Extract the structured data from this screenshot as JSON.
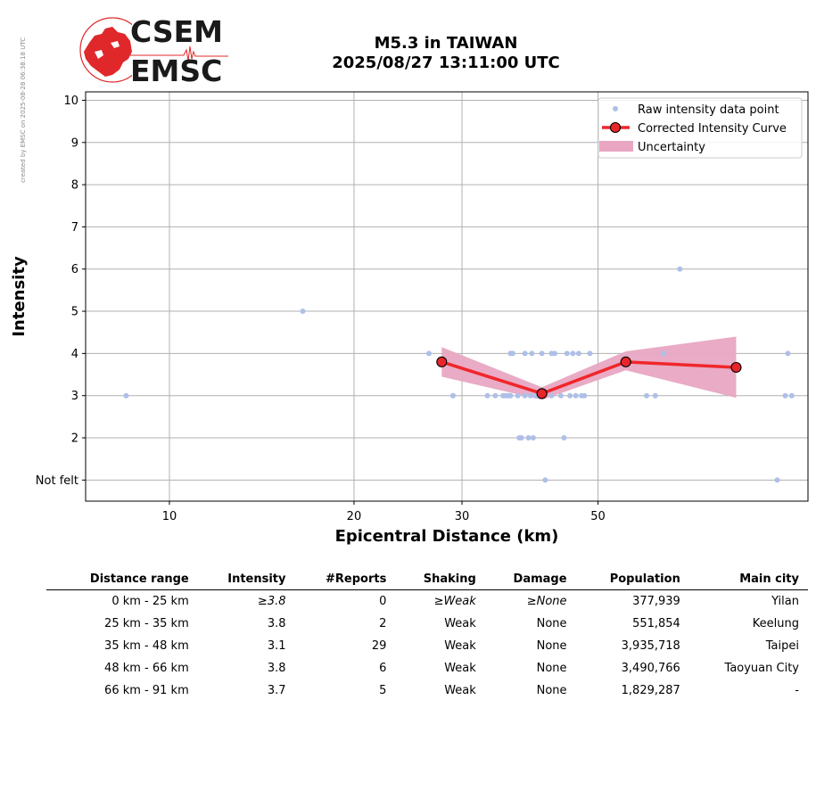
{
  "side_note": "created by EMSC on 2025-08-28 06:38:18 UTC",
  "logo": {
    "line1": "CSEM",
    "line2": "EMSC",
    "color": "#e0282b"
  },
  "title_line1": "M5.3 in TAIWAN",
  "title_line2": "2025/08/27 13:11:00 UTC",
  "chart_data": {
    "type": "scatter",
    "xlabel": "Epicentral Distance (km)",
    "ylabel": "Intensity",
    "x_scale": "log",
    "xlim": [
      7.3,
      110
    ],
    "ylim": [
      0.5,
      10.2
    ],
    "x_ticks": [
      10,
      20,
      30,
      50
    ],
    "y_ticks": [
      1,
      2,
      3,
      4,
      5,
      6,
      7,
      8,
      9,
      10
    ],
    "y_tick_labels": [
      "Not felt",
      "2",
      "3",
      "4",
      "5",
      "6",
      "7",
      "8",
      "9",
      "10"
    ],
    "grid": true,
    "legend_position": "top-right",
    "legend": [
      "Raw intensity data point",
      "Corrected Intensity Curve",
      "Uncertainty"
    ],
    "colors": {
      "raw": "#aebfe8",
      "curve": "#f0262a",
      "marker": "#e8262a",
      "uncertainty": "#e8a6c2"
    },
    "raw_points": {
      "x": [
        8.5,
        16.5,
        26.5,
        29.0,
        34.0,
        35.0,
        35.5,
        36.0,
        36.3,
        37.0,
        37.5,
        38.0,
        38.5,
        39.0,
        39.2,
        40.0,
        40.5,
        41.0,
        42.0,
        42.5,
        43.5,
        44.5,
        45.0,
        45.5,
        46.0,
        46.5,
        47.0,
        48.5,
        60.0,
        62.0,
        64.0,
        68.0,
        98.0,
        101.0,
        102.0,
        103.5,
        36.0,
        37.2,
        38.0,
        39.5,
        42.0,
        35.3,
        44.0,
        47.5,
        40.0,
        38.8,
        33.0,
        29.0,
        35.8
      ],
      "y": [
        3,
        5,
        4,
        3,
        3,
        3,
        3,
        4,
        4,
        3,
        2,
        4,
        2,
        4,
        2,
        3,
        4,
        1,
        4,
        4,
        3,
        4,
        3,
        4,
        3,
        4,
        3,
        4,
        3,
        3,
        4,
        6,
        1,
        3,
        4,
        3,
        3,
        2,
        3,
        3,
        3,
        3,
        2,
        3,
        3,
        3,
        3,
        3,
        3
      ]
    },
    "curve": {
      "x": [
        27.8,
        40.5,
        55.5,
        84.0
      ],
      "y": [
        3.8,
        3.05,
        3.8,
        3.67
      ],
      "upper": [
        4.15,
        3.2,
        4.05,
        4.4
      ],
      "lower": [
        3.45,
        2.9,
        3.6,
        2.95
      ]
    }
  },
  "table": {
    "headers": [
      "Distance range",
      "Intensity",
      "#Reports",
      "Shaking",
      "Damage",
      "Population",
      "Main city"
    ],
    "rows": [
      [
        "0 km -   25 km",
        "≥3.8",
        "0",
        "≥Weak",
        "≥None",
        "377,939",
        "Yilan"
      ],
      [
        "25 km -   35 km",
        "3.8",
        "2",
        "Weak",
        "None",
        "551,854",
        "Keelung"
      ],
      [
        "35 km -   48 km",
        "3.1",
        "29",
        "Weak",
        "None",
        "3,935,718",
        "Taipei"
      ],
      [
        "48 km -   66 km",
        "3.8",
        "6",
        "Weak",
        "None",
        "3,490,766",
        "Taoyuan City"
      ],
      [
        "66 km -   91 km",
        "3.7",
        "5",
        "Weak",
        "None",
        "1,829,287",
        "-"
      ]
    ]
  }
}
